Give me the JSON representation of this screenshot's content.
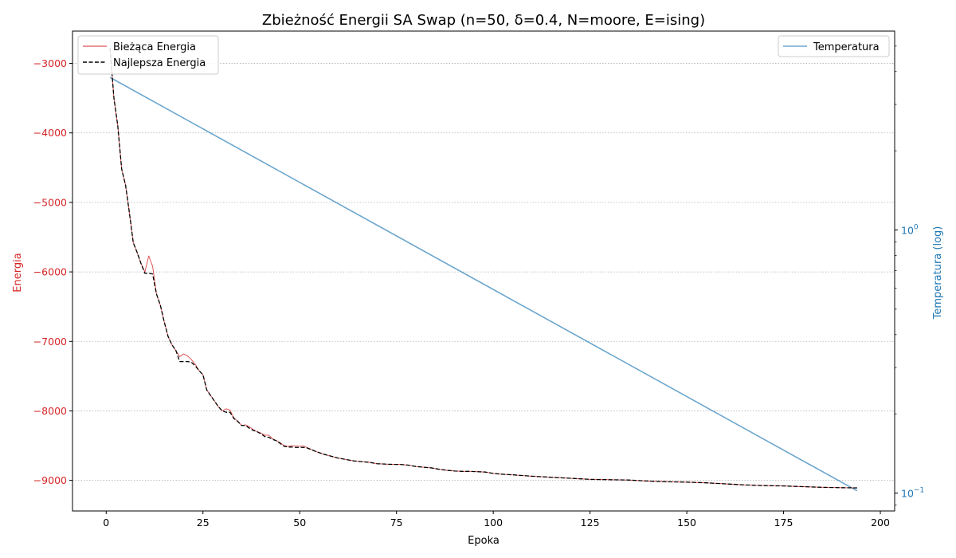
{
  "chart_data": {
    "type": "line",
    "title": "Zbieżność Energii SA Swap (n=50, δ=0.4, N=moore, E=ising)",
    "xlabel": "Epoka",
    "ylabel": "Energia",
    "y2label": "Temperatura (log)",
    "xlim": [
      -8.7,
      203.7
    ],
    "ylim": [
      -9440,
      -2535
    ],
    "y2lim": [
      0.0855,
      5.7
    ],
    "y2scale": "log",
    "x_ticks": [
      0,
      25,
      50,
      75,
      100,
      125,
      150,
      175,
      200
    ],
    "x_tick_labels": [
      "0",
      "25",
      "50",
      "75",
      "100",
      "125",
      "150",
      "175",
      "200"
    ],
    "y_ticks": [
      -3000,
      -4000,
      -5000,
      -6000,
      -7000,
      -8000,
      -9000
    ],
    "y_tick_labels": [
      "−3000",
      "−4000",
      "−5000",
      "−6000",
      "−7000",
      "−8000",
      "−9000"
    ],
    "y2_ticks": [
      1,
      0.1
    ],
    "y2_tick_labels": [
      {
        "base": "10",
        "exp": "0"
      },
      {
        "base": "10",
        "exp": "−1"
      }
    ],
    "grid": "y-dotted",
    "colors": {
      "current": "#d62728",
      "best": "#000000",
      "temperature": "#1f77b4",
      "grid": "#b0b0b0"
    },
    "legend_left": {
      "position": "top-left",
      "entries": [
        {
          "label": "Bieżąca Energia",
          "style": "solid-red-thin"
        },
        {
          "label": "Najlepsza Energia",
          "style": "dashed-black"
        }
      ]
    },
    "legend_right": {
      "position": "top-right",
      "entries": [
        {
          "label": "Temperatura",
          "style": "solid-blue"
        }
      ]
    },
    "series": [
      {
        "name": "Bieżąca Energia",
        "axis": "left",
        "x": [
          1,
          2,
          3,
          4,
          5,
          6,
          7,
          8,
          9,
          10,
          11,
          12,
          13,
          14,
          15,
          16,
          17,
          18,
          19,
          20,
          21,
          22,
          23,
          24,
          25,
          26,
          27,
          28,
          29,
          30,
          31,
          32,
          33,
          34,
          35,
          36,
          37,
          38,
          39,
          40,
          41,
          42,
          43,
          44,
          45,
          46,
          47,
          48,
          49,
          50,
          51,
          52,
          54,
          56,
          58,
          60,
          62,
          64,
          66,
          68,
          70,
          72,
          74,
          76,
          78,
          80,
          82,
          84,
          86,
          88,
          90,
          92,
          94,
          96,
          98,
          100,
          102,
          105,
          110,
          115,
          120,
          125,
          130,
          135,
          140,
          145,
          150,
          155,
          160,
          165,
          170,
          175,
          180,
          185,
          190,
          194
        ],
        "y": [
          -2780,
          -3500,
          -3900,
          -4520,
          -4750,
          -5150,
          -5580,
          -5720,
          -5880,
          -6000,
          -5770,
          -5920,
          -6320,
          -6480,
          -6720,
          -6930,
          -7050,
          -7130,
          -7220,
          -7180,
          -7210,
          -7260,
          -7330,
          -7420,
          -7480,
          -7700,
          -7780,
          -7860,
          -7940,
          -8000,
          -7970,
          -7990,
          -8100,
          -8150,
          -8210,
          -8200,
          -8230,
          -8270,
          -8300,
          -8320,
          -8350,
          -8350,
          -8400,
          -8430,
          -8460,
          -8500,
          -8510,
          -8500,
          -8505,
          -8510,
          -8505,
          -8530,
          -8580,
          -8620,
          -8650,
          -8680,
          -8700,
          -8720,
          -8730,
          -8740,
          -8760,
          -8765,
          -8770,
          -8770,
          -8780,
          -8800,
          -8810,
          -8820,
          -8840,
          -8855,
          -8865,
          -8870,
          -8870,
          -8875,
          -8880,
          -8900,
          -8910,
          -8920,
          -8940,
          -8955,
          -8970,
          -8985,
          -8990,
          -8995,
          -9010,
          -9020,
          -9025,
          -9035,
          -9050,
          -9065,
          -9075,
          -9080,
          -9090,
          -9100,
          -9105,
          -9108
        ]
      },
      {
        "name": "Najlepsza Energia",
        "axis": "left",
        "x": [
          1,
          2,
          3,
          4,
          5,
          6,
          7,
          8,
          9,
          10,
          11,
          12,
          13,
          14,
          15,
          16,
          17,
          18,
          19,
          20,
          21,
          22,
          23,
          24,
          25,
          26,
          27,
          28,
          29,
          30,
          31,
          32,
          33,
          34,
          35,
          36,
          37,
          38,
          39,
          40,
          41,
          42,
          43,
          44,
          45,
          46,
          47,
          48,
          49,
          50,
          51,
          52,
          54,
          56,
          58,
          60,
          62,
          64,
          66,
          68,
          70,
          72,
          74,
          76,
          78,
          80,
          82,
          84,
          86,
          88,
          90,
          92,
          94,
          96,
          98,
          100,
          102,
          105,
          110,
          115,
          120,
          125,
          130,
          135,
          140,
          145,
          150,
          155,
          160,
          165,
          170,
          175,
          180,
          185,
          190,
          194
        ],
        "y": [
          -2780,
          -3500,
          -3900,
          -4520,
          -4750,
          -5150,
          -5580,
          -5720,
          -5880,
          -6020,
          -6020,
          -6030,
          -6320,
          -6480,
          -6720,
          -6930,
          -7050,
          -7130,
          -7290,
          -7290,
          -7290,
          -7300,
          -7350,
          -7420,
          -7480,
          -7700,
          -7780,
          -7860,
          -7940,
          -8000,
          -8020,
          -8020,
          -8110,
          -8150,
          -8210,
          -8210,
          -8250,
          -8280,
          -8300,
          -8330,
          -8370,
          -8380,
          -8410,
          -8430,
          -8470,
          -8510,
          -8520,
          -8520,
          -8525,
          -8525,
          -8525,
          -8535,
          -8580,
          -8620,
          -8650,
          -8680,
          -8700,
          -8720,
          -8730,
          -8740,
          -8760,
          -8765,
          -8770,
          -8770,
          -8780,
          -8800,
          -8810,
          -8820,
          -8840,
          -8855,
          -8865,
          -8870,
          -8870,
          -8875,
          -8880,
          -8900,
          -8910,
          -8920,
          -8940,
          -8955,
          -8970,
          -8985,
          -8990,
          -8995,
          -9010,
          -9020,
          -9025,
          -9035,
          -9050,
          -9065,
          -9075,
          -9080,
          -9090,
          -9100,
          -9105,
          -9108
        ]
      },
      {
        "name": "Temperatura",
        "axis": "right",
        "x": [
          1,
          194
        ],
        "y": [
          3.8,
          0.102
        ]
      }
    ]
  }
}
